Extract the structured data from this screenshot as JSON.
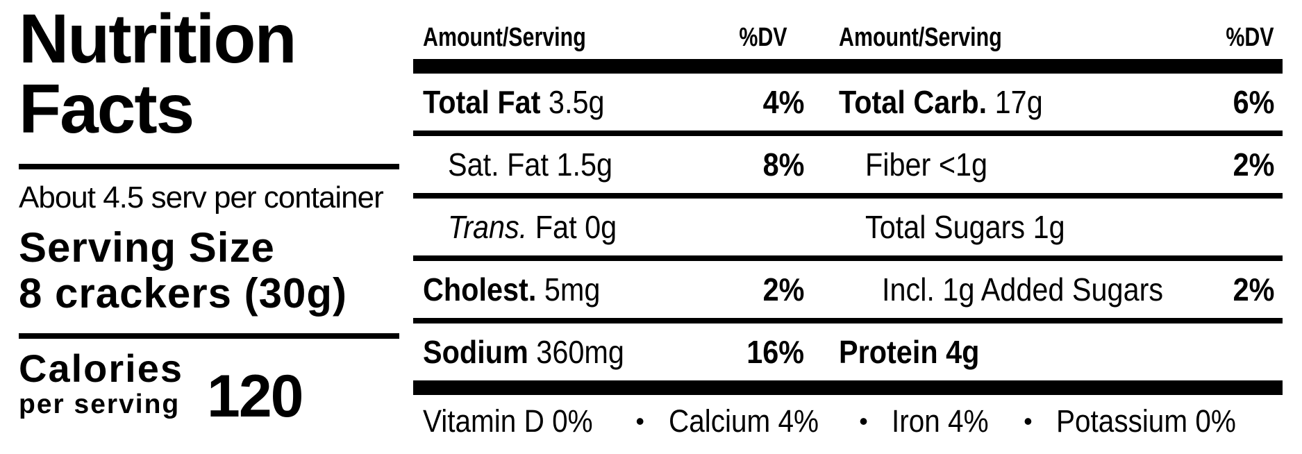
{
  "label": {
    "title_line1": "Nutrition",
    "title_line2": "Facts",
    "servings_per_container": "About 4.5 serv per container",
    "serving_size_label": "Serving Size",
    "serving_size_value": "8 crackers (30g)",
    "calories_label": "Calories",
    "calories_sublabel": "per serving",
    "calories_value": "120"
  },
  "table": {
    "header_left": {
      "amount": "Amount/Serving",
      "dv": "%DV"
    },
    "header_right": {
      "amount": "Amount/Serving",
      "dv": "%DV"
    },
    "rows": [
      {
        "left": {
          "name": "Total Fat",
          "value": "3.5g",
          "dv": "4%"
        },
        "right": {
          "name": "Total Carb.",
          "value": "17g",
          "dv": "6%"
        }
      },
      {
        "left": {
          "name": "Sat. Fat",
          "value": "1.5g",
          "dv": "8%"
        },
        "right": {
          "name": "Fiber",
          "value": "<1g",
          "dv": "2%"
        }
      },
      {
        "left": {
          "name": "Trans.",
          "value": "Fat 0g",
          "dv": ""
        },
        "right": {
          "name": "Total Sugars",
          "value": "1g",
          "dv": ""
        }
      },
      {
        "left": {
          "name": "Cholest.",
          "value": "5mg",
          "dv": "2%"
        },
        "right": {
          "name": "Incl. 1g Added Sugars",
          "value": "",
          "dv": "2%"
        }
      },
      {
        "left": {
          "name": "Sodium",
          "value": "360mg",
          "dv": "16%"
        },
        "right": {
          "name": "Protein 4g",
          "value": "",
          "dv": ""
        }
      }
    ],
    "bullet": "•",
    "micronutrients": [
      {
        "label": "Vitamin D 0%"
      },
      {
        "label": "Calcium 4%"
      },
      {
        "label": "Iron 4%"
      },
      {
        "label": "Potassium 0%"
      }
    ]
  },
  "colors": {
    "ink": "#000000",
    "paper": "#ffffff"
  }
}
